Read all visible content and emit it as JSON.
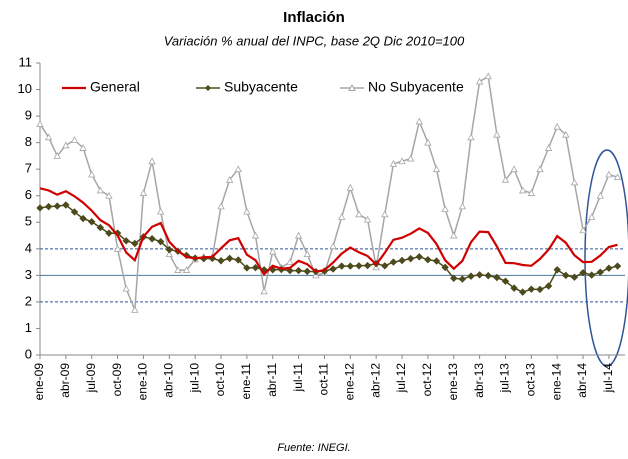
{
  "chart_data": {
    "type": "line",
    "title": "Inflación",
    "subtitle": "Variación % anual del INPC, base 2Q Dic 2010=100",
    "source": "Fuente: INEGI.",
    "categories": [
      "ene-09",
      null,
      null,
      "abr-09",
      null,
      null,
      "jul-09",
      null,
      null,
      "oct-09",
      null,
      null,
      "ene-10",
      null,
      null,
      "abr-10",
      null,
      null,
      "jul-10",
      null,
      null,
      "oct-10",
      null,
      null,
      "ene-11",
      null,
      null,
      "abr-11",
      null,
      null,
      "jul-11",
      null,
      null,
      "oct-11",
      null,
      null,
      "ene-12",
      null,
      null,
      "abr-12",
      null,
      null,
      "jul-12",
      null,
      null,
      "oct-12",
      null,
      null,
      "ene-13",
      null,
      null,
      "abr-13",
      null,
      null,
      "jul-13",
      null,
      null,
      "oct-13",
      null,
      null,
      "ene-14",
      null,
      null,
      "abr-14",
      null,
      null,
      "jul-14",
      null
    ],
    "series": [
      {
        "name": "General",
        "color": "#d00000",
        "marker": "none",
        "values": [
          6.28,
          6.2,
          6.04,
          6.17,
          5.98,
          5.74,
          5.44,
          5.08,
          4.89,
          4.5,
          3.86,
          3.57,
          4.46,
          4.83,
          4.97,
          4.27,
          3.92,
          3.69,
          3.64,
          3.68,
          3.7,
          4.02,
          4.32,
          4.4,
          3.78,
          3.57,
          3.04,
          3.36,
          3.25,
          3.28,
          3.55,
          3.42,
          3.14,
          3.2,
          3.48,
          3.82,
          4.05,
          3.87,
          3.73,
          3.41,
          3.85,
          4.34,
          4.42,
          4.57,
          4.77,
          4.6,
          4.18,
          3.57,
          3.25,
          3.55,
          4.25,
          4.65,
          4.63,
          4.09,
          3.47,
          3.46,
          3.39,
          3.36,
          3.62,
          3.97,
          4.48,
          4.23,
          3.76,
          3.5,
          3.51,
          3.75,
          4.07,
          4.15
        ]
      },
      {
        "name": "Subyacente",
        "color": "#4d4a1c",
        "marker": "diamond",
        "values": [
          5.54,
          5.59,
          5.61,
          5.65,
          5.39,
          5.14,
          5.02,
          4.8,
          4.59,
          4.59,
          4.3,
          4.2,
          4.45,
          4.38,
          4.27,
          3.97,
          3.91,
          3.75,
          3.65,
          3.63,
          3.64,
          3.55,
          3.64,
          3.58,
          3.28,
          3.29,
          3.21,
          3.21,
          3.22,
          3.18,
          3.18,
          3.15,
          3.14,
          3.16,
          3.24,
          3.35,
          3.35,
          3.36,
          3.37,
          3.44,
          3.36,
          3.5,
          3.56,
          3.63,
          3.7,
          3.59,
          3.54,
          3.3,
          2.89,
          2.86,
          2.97,
          3.02,
          2.99,
          2.92,
          2.78,
          2.52,
          2.37,
          2.48,
          2.47,
          2.6,
          3.21,
          3.0,
          2.93,
          3.1,
          3.01,
          3.12,
          3.27,
          3.35
        ]
      },
      {
        "name": "No Subyacente",
        "color": "#a6a6a6",
        "marker": "triangle",
        "values": [
          8.7,
          8.2,
          7.5,
          7.9,
          8.1,
          7.8,
          6.8,
          6.2,
          6.0,
          4.0,
          2.5,
          1.7,
          6.1,
          7.3,
          5.4,
          3.8,
          3.2,
          3.2,
          3.6,
          3.7,
          3.7,
          5.6,
          6.6,
          7.0,
          5.4,
          4.5,
          2.4,
          3.9,
          3.3,
          3.5,
          4.5,
          3.8,
          3.0,
          3.1,
          4.1,
          5.2,
          6.3,
          5.3,
          5.1,
          3.3,
          5.3,
          7.2,
          7.3,
          7.4,
          8.8,
          8.0,
          7.0,
          5.5,
          4.5,
          5.6,
          8.2,
          10.3,
          10.5,
          8.3,
          6.6,
          7.0,
          6.2,
          6.1,
          7.0,
          7.8,
          8.6,
          8.3,
          6.5,
          4.7,
          5.2,
          6.0,
          6.8,
          6.7
        ]
      }
    ],
    "reference_lines": [
      {
        "value": 2,
        "style": "dashed",
        "color": "#2f5597"
      },
      {
        "value": 3,
        "style": "solid",
        "color": "#4a7a9a"
      },
      {
        "value": 4,
        "style": "dashed",
        "color": "#2f5597"
      }
    ],
    "ylim": [
      0,
      11
    ],
    "yticks": [
      0,
      1,
      2,
      3,
      4,
      5,
      6,
      7,
      8,
      9,
      10,
      11
    ],
    "grid": false,
    "legend": "top"
  }
}
